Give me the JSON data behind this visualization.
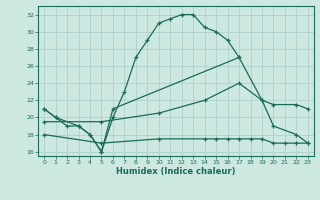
{
  "background_color": "#cce8e0",
  "grid_color": "#aacccc",
  "line_color": "#1a6b5a",
  "xlabel": "Humidex (Indice chaleur)",
  "xlim": [
    -0.5,
    23.5
  ],
  "ylim": [
    15.5,
    33.0
  ],
  "yticks": [
    16,
    18,
    20,
    22,
    24,
    26,
    28,
    30,
    32
  ],
  "xticks": [
    0,
    1,
    2,
    3,
    4,
    5,
    6,
    7,
    8,
    9,
    10,
    11,
    12,
    13,
    14,
    15,
    16,
    17,
    18,
    19,
    20,
    21,
    22,
    23
  ],
  "line1_x": [
    0,
    1,
    2,
    3,
    4,
    5,
    6,
    7,
    8,
    9,
    10,
    11,
    12,
    13,
    14,
    15,
    16,
    17
  ],
  "line1_y": [
    21,
    20,
    19,
    19,
    18,
    16,
    20,
    23,
    27,
    29,
    31,
    31.5,
    32,
    32,
    30.5,
    30,
    29,
    27
  ],
  "line2_x": [
    0,
    1,
    3,
    4,
    5,
    6,
    17,
    19,
    20,
    22,
    23
  ],
  "line2_y": [
    21,
    20,
    19,
    18,
    16,
    21,
    27,
    22,
    19,
    18,
    17
  ],
  "line3_x": [
    0,
    5,
    10,
    14,
    17,
    19,
    20,
    22,
    23
  ],
  "line3_y": [
    19.5,
    19.5,
    20.5,
    22,
    24,
    22,
    21.5,
    21.5,
    21
  ],
  "line4_x": [
    0,
    5,
    10,
    14,
    15,
    16,
    17,
    18,
    19,
    20,
    21,
    22,
    23
  ],
  "line4_y": [
    18,
    17,
    17.5,
    17.5,
    17.5,
    17.5,
    17.5,
    17.5,
    17.5,
    17,
    17,
    17,
    17
  ]
}
